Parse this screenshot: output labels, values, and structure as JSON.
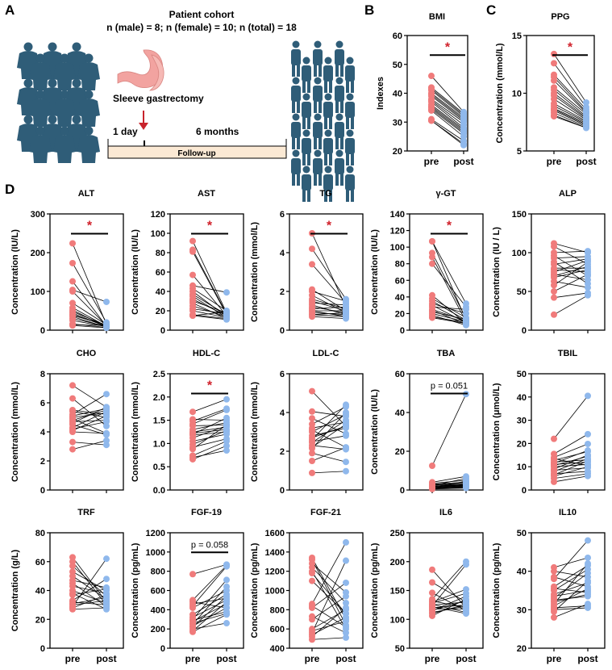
{
  "panel_labels": {
    "a": "A",
    "b": "B",
    "c": "C",
    "d": "D"
  },
  "schematic": {
    "cohort_title": "Patient cohort",
    "cohort_counts": "n (male) = 8; n (female) = 10; n (total) = 18",
    "procedure": "Sleeve gastrectomy",
    "time_start": "1 day",
    "time_end": "6 months",
    "timeline_label": "Follow-up",
    "icons": [
      "obese-people-crowd-icon",
      "stomach-icon",
      "red-arrow-icon",
      "slim-people-crowd-icon"
    ],
    "colors": {
      "people": "#2f5d78",
      "stomach": "#f2a3a0",
      "timeline": "#fbe9d4",
      "arrow": "#c8232c"
    }
  },
  "colors": {
    "pre": "#f07b7b",
    "post": "#8fb8ec",
    "significance": "#d0202a",
    "line": "#000000"
  },
  "chart_data": [
    {
      "type": "scatter",
      "title": "BMI",
      "ylabel": "Indexes",
      "categories": [
        "pre",
        "post"
      ],
      "ylim": [
        20,
        60
      ],
      "yticks": [
        "20",
        "30",
        "40",
        "50",
        "60"
      ],
      "significance": "*",
      "pre": [
        46,
        42,
        41.5,
        41,
        40,
        39.5,
        39,
        38,
        37.5,
        37,
        36,
        35.5,
        35,
        34.5,
        34,
        31,
        30.5,
        30.5
      ],
      "post": [
        33.5,
        33,
        32.5,
        32,
        31.5,
        31,
        30.5,
        30,
        29,
        28,
        27.5,
        27,
        26.5,
        26,
        25,
        23.5,
        22.5,
        22
      ]
    },
    {
      "type": "scatter",
      "title": "PPG",
      "ylabel": "Concentration (mmol/L)",
      "categories": [
        "pre",
        "post"
      ],
      "ylim": [
        5,
        15
      ],
      "yticks": [
        "5",
        "10",
        "15"
      ],
      "significance": "*",
      "pre": [
        13.4,
        12.6,
        11.6,
        11.4,
        11.1,
        10.5,
        10.3,
        10,
        9.8,
        9.5,
        9.1,
        8.9,
        8.7,
        8.6,
        8.5,
        8.3,
        8.1,
        8.0
      ],
      "post": [
        9.2,
        8.8,
        8.6,
        8.4,
        8.3,
        8.2,
        8.0,
        7.9,
        7.8,
        7.7,
        7.6,
        7.5,
        7.4,
        7.3,
        7.2,
        7.1,
        7.0,
        7.0
      ]
    },
    {
      "type": "scatter",
      "title": "ALT",
      "ylabel": "Concentration (IU/L)",
      "categories": [
        "pre",
        "post"
      ],
      "ylim": [
        0,
        300
      ],
      "yticks": [
        "0",
        "100",
        "200",
        "300"
      ],
      "significance": "*",
      "pre": [
        224,
        173,
        126,
        104,
        100,
        70,
        58,
        52,
        48,
        44,
        40,
        38,
        35,
        30,
        25,
        16,
        14,
        12
      ],
      "post": [
        15,
        20,
        10,
        73,
        12,
        14,
        10,
        8,
        12,
        9,
        11,
        14,
        8,
        10,
        9,
        7,
        12,
        6
      ]
    },
    {
      "type": "scatter",
      "title": "AST",
      "ylabel": "Concentration (IU/L)",
      "categories": [
        "pre",
        "post"
      ],
      "ylim": [
        0,
        120
      ],
      "yticks": [
        "0",
        "20",
        "40",
        "60",
        "80",
        "100",
        "120"
      ],
      "significance": "*",
      "pre": [
        92,
        83,
        81,
        57,
        46,
        43,
        40,
        37,
        35,
        32,
        30,
        28,
        25,
        22,
        20,
        16,
        15,
        15
      ],
      "post": [
        18,
        17,
        16,
        15,
        39,
        20,
        14,
        16,
        13,
        15,
        18,
        12,
        14,
        17,
        13,
        12,
        19,
        11
      ]
    },
    {
      "type": "scatter",
      "title": "TG",
      "ylabel": "Concentration (mmol/L)",
      "categories": [
        "pre",
        "post"
      ],
      "ylim": [
        0,
        6
      ],
      "yticks": [
        "0",
        "2",
        "4",
        "6"
      ],
      "significance": "*",
      "pre": [
        5.0,
        4.2,
        3.4,
        2.1,
        2.0,
        1.8,
        1.6,
        1.5,
        1.4,
        1.3,
        1.2,
        1.1,
        1.0,
        1.0,
        0.9,
        0.8,
        0.8,
        0.7
      ],
      "post": [
        1.2,
        1.6,
        1.4,
        1.0,
        1.5,
        0.9,
        1.1,
        1.0,
        1.3,
        0.8,
        0.9,
        1.2,
        0.7,
        1.0,
        0.8,
        0.9,
        0.7,
        0.6
      ]
    },
    {
      "type": "scatter",
      "title": "γ-GT",
      "ylabel": "Concentration (IU/L)",
      "categories": [
        "pre",
        "post"
      ],
      "ylim": [
        0,
        140
      ],
      "yticks": [
        "0",
        "20",
        "40",
        "60",
        "80",
        "100",
        "120",
        "140"
      ],
      "significance": "*",
      "pre": [
        107,
        107,
        93,
        88,
        80,
        42,
        38,
        35,
        32,
        30,
        28,
        25,
        24,
        22,
        20,
        18,
        16,
        15
      ],
      "post": [
        12,
        32,
        14,
        10,
        28,
        8,
        15,
        12,
        20,
        9,
        25,
        11,
        7,
        13,
        10,
        6,
        9,
        8
      ]
    },
    {
      "type": "scatter",
      "title": "ALP",
      "ylabel": "Concentration (IU / L)",
      "categories": [
        "pre",
        "post"
      ],
      "ylim": [
        0,
        150
      ],
      "yticks": [
        "0",
        "50",
        "100",
        "150"
      ],
      "significance": null,
      "pre": [
        112,
        108,
        100,
        96,
        93,
        88,
        85,
        80,
        78,
        75,
        72,
        70,
        68,
        63,
        58,
        50,
        42,
        20
      ],
      "post": [
        100,
        85,
        102,
        70,
        95,
        60,
        92,
        80,
        75,
        90,
        65,
        82,
        78,
        55,
        88,
        72,
        48,
        45
      ]
    },
    {
      "type": "scatter",
      "title": "CHO",
      "ylabel": "Concentration (mmol/L)",
      "categories": [
        "pre",
        "post"
      ],
      "ylim": [
        0,
        8
      ],
      "yticks": [
        "0",
        "2",
        "4",
        "6",
        "8"
      ],
      "significance": null,
      "pre": [
        7.2,
        6.3,
        5.5,
        5.4,
        5.2,
        5.1,
        5.0,
        4.9,
        4.8,
        4.7,
        4.6,
        4.5,
        4.3,
        4.2,
        4.1,
        4.0,
        3.3,
        2.8
      ],
      "post": [
        5.7,
        4.4,
        5.2,
        5.0,
        6.6,
        5.6,
        5.3,
        3.9,
        5.5,
        4.8,
        5.7,
        3.8,
        5.4,
        4.7,
        5.1,
        3.9,
        3.1,
        3.4
      ]
    },
    {
      "type": "scatter",
      "title": "HDL-C",
      "ylabel": "Concentration (mmol/L)",
      "categories": [
        "pre",
        "post"
      ],
      "ylim": [
        0,
        2.5
      ],
      "yticks": [
        "0.0",
        "0.5",
        "1.0",
        "1.5",
        "2.0",
        "2.5"
      ],
      "significance": "*",
      "pre": [
        1.68,
        1.52,
        1.48,
        1.42,
        1.38,
        1.3,
        1.25,
        1.22,
        1.2,
        1.18,
        1.12,
        1.05,
        0.98,
        0.92,
        0.88,
        0.74,
        0.7,
        0.66
      ],
      "post": [
        1.95,
        1.5,
        1.75,
        1.72,
        1.4,
        1.45,
        1.35,
        1.3,
        1.55,
        1.25,
        1.38,
        1.2,
        1.28,
        1.1,
        1.4,
        1.05,
        0.85,
        0.95
      ]
    },
    {
      "type": "scatter",
      "title": "LDL-C",
      "ylabel": "Concentration (mmol/L)",
      "categories": [
        "pre",
        "post"
      ],
      "ylim": [
        0,
        6
      ],
      "yticks": [
        "0",
        "2",
        "4",
        "6"
      ],
      "significance": null,
      "pre": [
        5.1,
        4.05,
        3.7,
        3.4,
        3.2,
        3.1,
        3.0,
        2.8,
        2.7,
        2.6,
        2.5,
        2.45,
        2.3,
        2.2,
        2.15,
        1.9,
        1.5,
        0.88
      ],
      "post": [
        3.3,
        3.8,
        2.9,
        4.3,
        3.5,
        2.2,
        3.9,
        3.2,
        3.3,
        4.4,
        2.8,
        3.6,
        2.1,
        3.4,
        4.0,
        1.45,
        2.2,
        0.97
      ]
    },
    {
      "type": "scatter",
      "title": "TBA",
      "ylabel": "Concentration (IU/L)",
      "categories": [
        "pre",
        "post"
      ],
      "ylim": [
        0,
        60
      ],
      "yticks": [
        "0",
        "20",
        "40",
        "60"
      ],
      "significance": "p = 0.051",
      "pre": [
        12.5,
        4,
        3.5,
        3,
        2.8,
        2.5,
        2.3,
        2.1,
        2,
        1.8,
        1.6,
        1.5,
        1.3,
        1.2,
        1.0,
        0.8,
        0.6,
        0.5
      ],
      "post": [
        49.5,
        7,
        5,
        4,
        3.5,
        3,
        6,
        2.5,
        2.2,
        3.2,
        2,
        4.5,
        1.8,
        2.8,
        1.5,
        1.2,
        2.6,
        1
      ]
    },
    {
      "type": "scatter",
      "title": "TBIL",
      "ylabel": "Concentration (μmol/L)",
      "categories": [
        "pre",
        "post"
      ],
      "ylim": [
        0,
        50
      ],
      "yticks": [
        "0",
        "10",
        "20",
        "30",
        "40",
        "50"
      ],
      "significance": null,
      "pre": [
        22,
        15.5,
        14,
        13.5,
        12.8,
        12,
        11.5,
        11,
        10.5,
        10,
        9,
        8.5,
        8,
        7,
        6.5,
        6,
        5,
        3.5
      ],
      "post": [
        40.5,
        24,
        19.8,
        10.5,
        16.5,
        13,
        17,
        12,
        14.5,
        11,
        15,
        9.5,
        13.5,
        8,
        12.5,
        10,
        7,
        6
      ]
    },
    {
      "type": "scatter",
      "title": "TRF",
      "ylabel": "Concentration (g/L)",
      "categories": [
        "pre",
        "post"
      ],
      "ylim": [
        0,
        80
      ],
      "yticks": [
        "0",
        "20",
        "40",
        "60",
        "80"
      ],
      "significance": null,
      "pre": [
        63,
        60,
        57,
        53,
        50,
        47,
        45,
        43,
        40,
        38,
        37,
        33,
        32,
        31,
        30,
        29,
        28,
        27
      ],
      "post": [
        32,
        30,
        36,
        40,
        34,
        42,
        29,
        38,
        31,
        27,
        41,
        48,
        30,
        35,
        33,
        62,
        37,
        28
      ]
    },
    {
      "type": "scatter",
      "title": "FGF-19",
      "ylabel": "Concentration (pg/mL)",
      "categories": [
        "pre",
        "post"
      ],
      "ylim": [
        0,
        1200
      ],
      "yticks": [
        "0",
        "200",
        "400",
        "600",
        "800",
        "1000",
        "1200"
      ],
      "significance": "p = 0.058",
      "pre": [
        770,
        500,
        480,
        460,
        440,
        420,
        350,
        320,
        300,
        290,
        280,
        260,
        250,
        230,
        220,
        200,
        180,
        170
      ],
      "post": [
        870,
        860,
        420,
        520,
        850,
        600,
        560,
        500,
        710,
        380,
        460,
        360,
        640,
        420,
        540,
        260,
        480,
        350
      ]
    },
    {
      "type": "scatter",
      "title": "FGF-21",
      "ylabel": "Concentration (pg/mL)",
      "categories": [
        "pre",
        "post"
      ],
      "ylim": [
        400,
        1600
      ],
      "yticks": [
        "400",
        "600",
        "800",
        "1000",
        "1200",
        "1400",
        "1600"
      ],
      "significance": null,
      "pre": [
        1340,
        1320,
        1280,
        1240,
        1200,
        1180,
        1100,
        860,
        840,
        820,
        730,
        700,
        600,
        580,
        560,
        540,
        520,
        490
      ],
      "post": [
        700,
        640,
        980,
        870,
        600,
        760,
        760,
        1500,
        620,
        1080,
        560,
        940,
        800,
        680,
        1310,
        720,
        820,
        510
      ]
    },
    {
      "type": "scatter",
      "title": "IL6",
      "ylabel": "Concentration (pg/mL)",
      "categories": [
        "pre",
        "post"
      ],
      "ylim": [
        50,
        250
      ],
      "yticks": [
        "50",
        "100",
        "150",
        "200",
        "250"
      ],
      "significance": null,
      "pre": [
        186,
        164,
        146,
        135,
        132,
        130,
        128,
        126,
        125,
        123,
        122,
        120,
        118,
        116,
        115,
        112,
        110,
        106
      ],
      "post": [
        120,
        130,
        115,
        200,
        120,
        152,
        145,
        112,
        130,
        195,
        110,
        125,
        118,
        132,
        140,
        123,
        126,
        135
      ]
    },
    {
      "type": "scatter",
      "title": "IL10",
      "ylabel": "Concentration (pg/mL)",
      "categories": [
        "pre",
        "post"
      ],
      "ylim": [
        20,
        50
      ],
      "yticks": [
        "20",
        "30",
        "40",
        "50"
      ],
      "significance": null,
      "pre": [
        41,
        40,
        38.5,
        38,
        36,
        35.5,
        35,
        34,
        33.5,
        33,
        32.5,
        32,
        31.5,
        31,
        30.5,
        30,
        29.5,
        28
      ],
      "post": [
        43.5,
        38.5,
        36,
        48,
        41.5,
        34.5,
        40.5,
        37,
        35,
        39.5,
        33.5,
        34,
        42,
        35.5,
        31,
        30.5,
        37.5,
        31.5
      ]
    }
  ]
}
